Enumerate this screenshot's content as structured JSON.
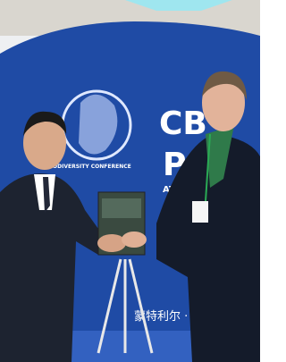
{
  "banner": {
    "conference": "ON BIODIVERSITY CONFERENCE",
    "logo_line1": "CB",
    "logo_line2": "P",
    "logo_line3": "AT",
    "city": "蒙特利尔 ·"
  }
}
